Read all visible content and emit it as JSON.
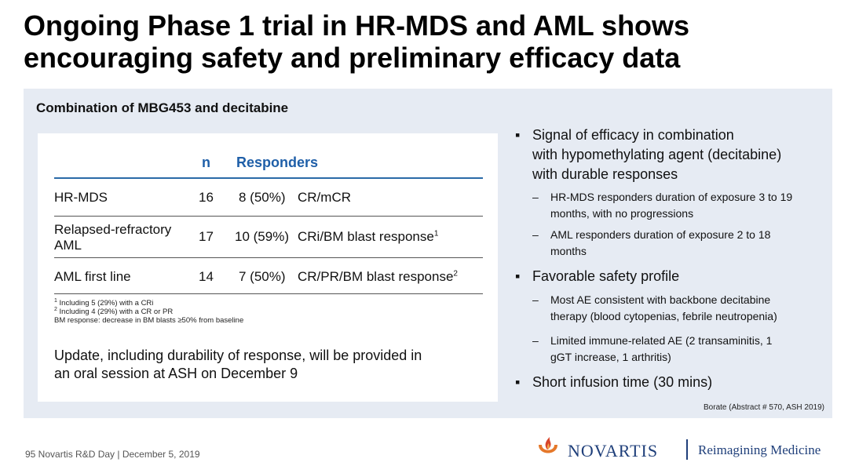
{
  "slide": {
    "title_line1": "Ongoing Phase 1 trial in HR-MDS and AML shows",
    "title_line2": "encouraging safety and preliminary efficacy data"
  },
  "panel": {
    "heading": "Combination of MBG453 and decitabine",
    "table": {
      "headers": {
        "n": "n",
        "responders": "Responders"
      },
      "rows": [
        {
          "label": "HR-MDS",
          "label2": "",
          "n": "16",
          "count": "8 (50%)",
          "response": "CR/mCR",
          "sup": ""
        },
        {
          "label": "Relapsed-refractory",
          "label2": "AML",
          "n": "17",
          "count": "10 (59%)",
          "response": "CRi/BM blast response",
          "sup": "1"
        },
        {
          "label": "AML first line",
          "label2": "",
          "n": "14",
          "count": "7 (50%)",
          "response": "CR/PR/BM blast response",
          "sup": "2"
        }
      ]
    },
    "footnotes": [
      {
        "sup": "1",
        "text": " Including 5 (29%) with a CRi"
      },
      {
        "sup": "2",
        "text": " Including 4 (29%) with a CR or PR"
      },
      {
        "sup": "",
        "text": "BM response: decrease in BM blasts ≥50% from baseline"
      }
    ],
    "update_line1": "Update, including durability of response, will be provided in",
    "update_line2": "an oral session at ASH on December 9",
    "bullets": {
      "b1_line1": "Signal of efficacy in combination",
      "b1_line2": "with hypomethylating agent (decitabine)",
      "b1_line3": "with durable responses",
      "s1_line1": "HR-MDS responders duration of exposure 3 to 19",
      "s1_line2": "months, with no progressions",
      "s2_line1": "AML responders duration of exposure 2 to 18",
      "s2_line2": "months",
      "b2": "Favorable safety profile",
      "s3_line1": "Most AE consistent with backbone decitabine",
      "s3_line2": "therapy (blood cytopenias, febrile neutropenia)",
      "s4_line1": "Limited immune-related AE (2 transaminitis, 1",
      "s4_line2": "gGT increase, 1 arthritis)",
      "b3": "Short infusion time (30 mins)",
      "bullet_mark": "▪",
      "dash_mark": "–"
    },
    "source": "Borate (Abstract # 570, ASH 2019)"
  },
  "footer": {
    "text": "95   Novartis R&D Day | December 5, 2019",
    "brand": "NOVARTIS",
    "tagline": "Reimagining Medicine",
    "logo_icon": "novartis-flame-icon",
    "logo_colors": {
      "flame_orange": "#e5782a",
      "flame_red": "#d8452a",
      "brand_blue": "#1f3f7a"
    }
  }
}
